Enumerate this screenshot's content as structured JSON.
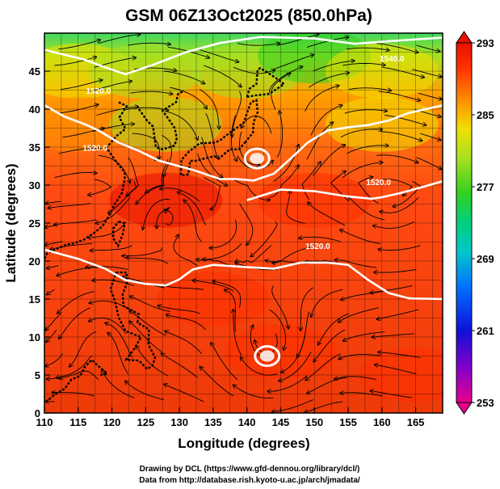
{
  "chart_data": {
    "type": "heatmap",
    "title": "GSM 06Z13Oct2025 (850.0hPa)",
    "xlabel": "Longitude (degrees)",
    "ylabel": "Latitude (degrees)",
    "xlim": [
      110,
      169
    ],
    "ylim": [
      0,
      50
    ],
    "x_ticks": [
      "110",
      "115",
      "120",
      "125",
      "130",
      "135",
      "140",
      "145",
      "150",
      "155",
      "160",
      "165"
    ],
    "y_ticks": [
      "0",
      "5",
      "10",
      "15",
      "20",
      "25",
      "30",
      "35",
      "40",
      "45"
    ],
    "grid": true,
    "colorbar": {
      "min": 253,
      "max": 293,
      "ticks": [
        "293",
        "285",
        "277",
        "269",
        "261",
        "253"
      ],
      "colors": [
        "#e8008a",
        "#8a00c8",
        "#1010d8",
        "#0080ff",
        "#00c8c8",
        "#00d080",
        "#30d020",
        "#a8e020",
        "#f0e000",
        "#ff9000",
        "#ff3000",
        "#e81000"
      ]
    },
    "field_samples": [
      {
        "lon": 115,
        "lat": 45,
        "value": 282
      },
      {
        "lon": 125,
        "lat": 45,
        "value": 278
      },
      {
        "lon": 140,
        "lat": 45,
        "value": 279
      },
      {
        "lon": 150,
        "lat": 47,
        "value": 275
      },
      {
        "lon": 160,
        "lat": 45,
        "value": 281
      },
      {
        "lon": 115,
        "lat": 38,
        "value": 286
      },
      {
        "lon": 128,
        "lat": 38,
        "value": 279
      },
      {
        "lon": 160,
        "lat": 38,
        "value": 283
      },
      {
        "lon": 128,
        "lat": 28,
        "value": 292
      },
      {
        "lon": 150,
        "lat": 28,
        "value": 288
      },
      {
        "lon": 135,
        "lat": 15,
        "value": 290
      },
      {
        "lon": 145,
        "lat": 8,
        "value": 290
      },
      {
        "lon": 165,
        "lat": 5,
        "value": 289
      }
    ],
    "contour_labels": [
      "1540.0",
      "1520.0",
      "1520.0",
      "1520.0",
      "1520.0"
    ],
    "low_centers": [
      {
        "lon": 141.5,
        "lat": 33.5
      },
      {
        "lon": 143,
        "lat": 7.5
      }
    ],
    "credits": [
      "Drawing by DCL (https://www.gfd-dennou.org/library/dcl/)",
      "Data from http://database.rish.kyoto-u.ac.jp/arch/jmadata/"
    ]
  }
}
